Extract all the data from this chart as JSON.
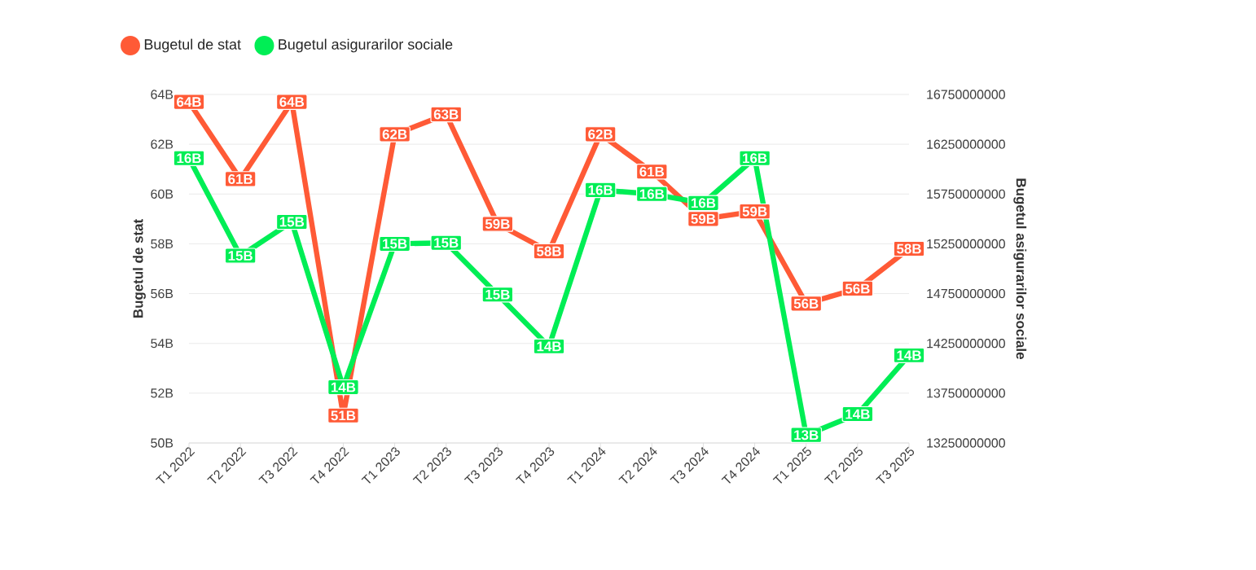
{
  "chart_data": {
    "type": "line",
    "ylabel": "Bugetul de stat",
    "y2label": "Bugetul asigurarilor sociale",
    "categories": [
      "T1 2022",
      "T2 2022",
      "T3 2022",
      "T4 2022",
      "T1 2023",
      "T2 2023",
      "T3 2023",
      "T4 2023",
      "T1 2024",
      "T2 2024",
      "T3 2024",
      "T4 2024",
      "T1 2025",
      "T2 2025",
      "T3 2025"
    ],
    "series": [
      {
        "name": "Bugetul de stat",
        "color": "#ff5a36",
        "values": [
          63.7,
          60.6,
          63.7,
          51.1,
          62.4,
          63.2,
          58.8,
          57.7,
          62.4,
          60.9,
          59.0,
          59.3,
          55.6,
          56.2,
          57.8
        ],
        "value_labels": [
          "64B",
          "61B",
          "64B",
          "51B",
          "62B",
          "63B",
          "59B",
          "58B",
          "62B",
          "61B",
          "59B",
          "59B",
          "56B",
          "56B",
          "58B"
        ]
      },
      {
        "name": "Bugetul asigurarilor sociale",
        "color": "#00ee55",
        "axis": "y2",
        "values": [
          16110000000,
          15130000000,
          15470000000,
          13810000000,
          15250000000,
          15260000000,
          14740000000,
          14220000000,
          15790000000,
          15750000000,
          15660000000,
          16110000000,
          13330000000,
          13540000000,
          14130000000
        ],
        "value_labels": [
          "16B",
          "15B",
          "15B",
          "14B",
          "15B",
          "15B",
          "15B",
          "14B",
          "16B",
          "16B",
          "16B",
          "16B",
          "13B",
          "14B",
          "14B"
        ]
      }
    ],
    "ylim": [
      50,
      64
    ],
    "yticks": [
      {
        "value": 50,
        "label": "50B"
      },
      {
        "value": 52,
        "label": "52B"
      },
      {
        "value": 54,
        "label": "54B"
      },
      {
        "value": 56,
        "label": "56B"
      },
      {
        "value": 58,
        "label": "58B"
      },
      {
        "value": 60,
        "label": "60B"
      },
      {
        "value": 62,
        "label": "62B"
      },
      {
        "value": 64,
        "label": "64B"
      }
    ],
    "y2lim": [
      13250000000,
      16750000000
    ],
    "y2ticks": [
      13250000000,
      13750000000,
      14250000000,
      14750000000,
      15250000000,
      15750000000,
      16250000000,
      16750000000
    ],
    "grid": "y",
    "legend": "top left",
    "marker": "square",
    "line_style": "solid"
  }
}
